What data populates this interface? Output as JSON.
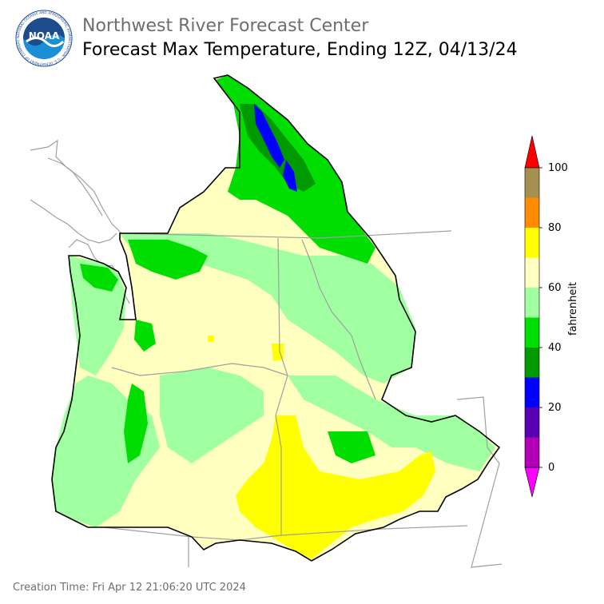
{
  "header": {
    "organization": "Northwest River Forecast Center",
    "title": "Forecast Max Temperature, Ending 12Z, 04/13/24"
  },
  "logo": {
    "text": "NOAA",
    "ring_text": "NATIONAL OCEANIC AND ATMOSPHERIC ADMINISTRATION · U.S. DEPARTMENT OF COMMERCE",
    "colors": {
      "ring": "#ffffff",
      "sky": "#1c4c8c",
      "water": "#1a8fd6",
      "bird": "#ffffff"
    }
  },
  "legend": {
    "unit": "fahrenheit",
    "tick_labels": [
      "100",
      "80",
      "60",
      "40",
      "20",
      "0"
    ],
    "bins": [
      {
        "range": "90-100",
        "color": "#a69050"
      },
      {
        "range": "80-90",
        "color": "#ff8c00"
      },
      {
        "range": "70-80",
        "color": "#ffff00"
      },
      {
        "range": "60-70",
        "color": "#ffffc0"
      },
      {
        "range": "50-60",
        "color": "#a0ffa0"
      },
      {
        "range": "40-50",
        "color": "#00dd00"
      },
      {
        "range": "30-40",
        "color": "#009900"
      },
      {
        "range": "20-30",
        "color": "#0000ff"
      },
      {
        "range": "10-20",
        "color": "#5a00b4"
      },
      {
        "range": "0-10",
        "color": "#b400b4"
      }
    ],
    "over_color": "#ff0000",
    "under_color": "#ff00ff"
  },
  "map": {
    "region": "Pacific Northwest / Columbia River Basin",
    "boundary_color": "#000000",
    "state_line_color": "#a0a0a0",
    "coastline_color": "#a0a0a0"
  },
  "footer": {
    "creation_time": "Creation Time: Fri Apr 12 21:06:20 UTC 2024"
  }
}
